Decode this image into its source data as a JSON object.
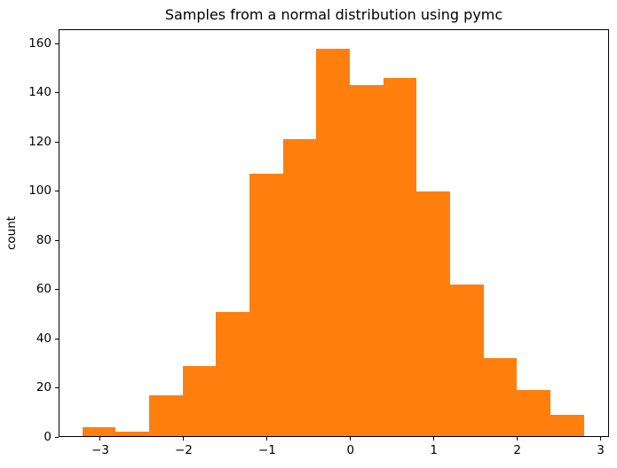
{
  "chart_data": {
    "type": "bar",
    "subtype": "histogram",
    "title": "Samples from a normal distribution using pymc",
    "xlabel": "",
    "ylabel": "count",
    "bin_edges": [
      -3.216,
      -2.815,
      -2.414,
      -2.013,
      -1.612,
      -1.211,
      -0.81,
      -0.409,
      -0.008,
      0.393,
      0.794,
      1.195,
      1.596,
      1.997,
      2.398,
      2.799
    ],
    "counts": [
      4,
      2,
      17,
      29,
      51,
      107,
      121,
      158,
      143,
      146,
      100,
      62,
      32,
      19,
      9
    ],
    "total_samples": 1000,
    "x_tick_values": [
      -3,
      -2,
      -1,
      0,
      1,
      2,
      3
    ],
    "x_tick_labels": [
      "−3",
      "−2",
      "−1",
      "0",
      "1",
      "2",
      "3"
    ],
    "y_tick_values": [
      0,
      20,
      40,
      60,
      80,
      100,
      120,
      140,
      160
    ],
    "y_tick_labels": [
      "0",
      "20",
      "40",
      "60",
      "80",
      "100",
      "120",
      "140",
      "160"
    ],
    "xlim": [
      -3.5,
      3.1
    ],
    "ylim": [
      0,
      165.9
    ],
    "grid": false,
    "legend": null,
    "bar_color": "#ff7f0e",
    "axis_color": "#000000",
    "background_color": "#ffffff"
  }
}
